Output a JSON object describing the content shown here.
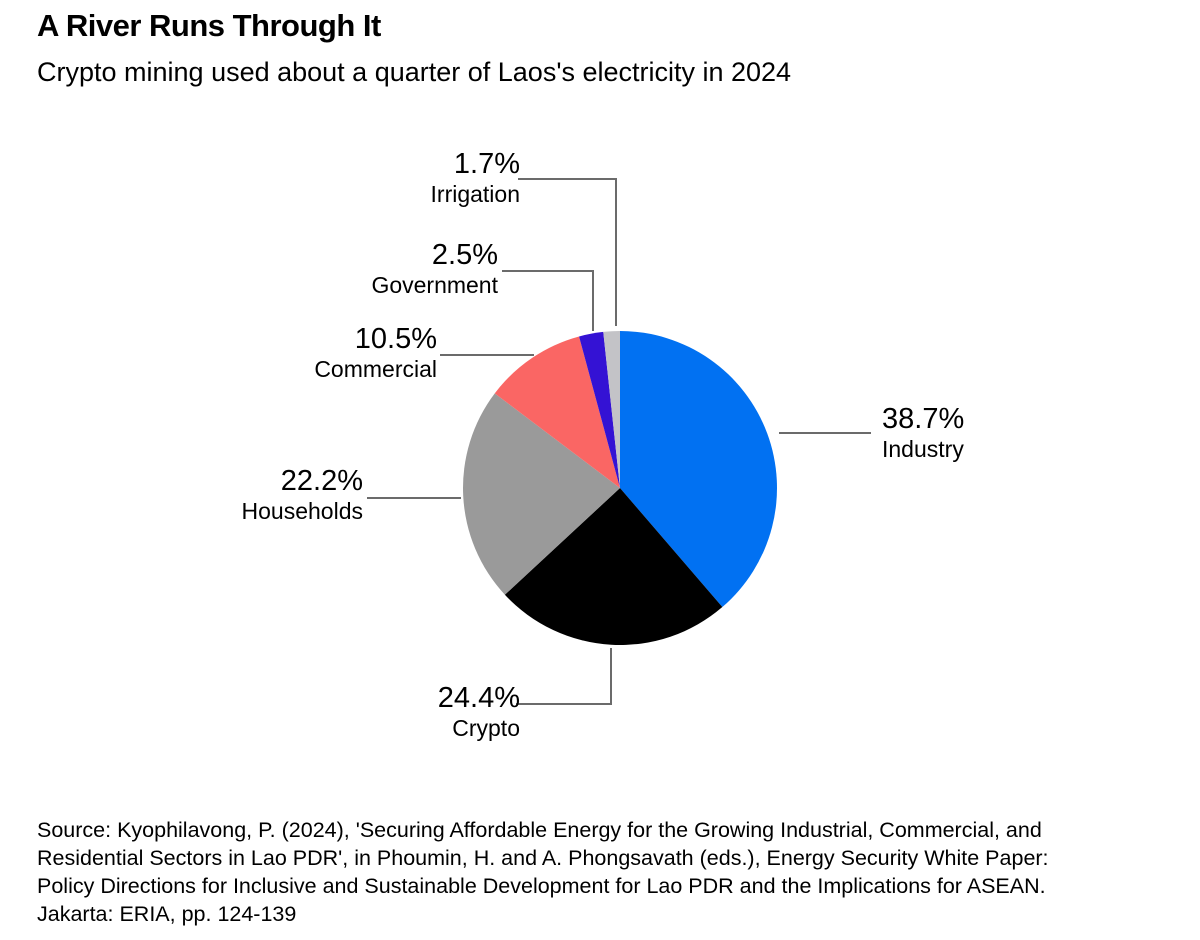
{
  "header": {
    "title": "A River Runs Through It",
    "subtitle": "Crypto mining used about a quarter of Laos's electricity in 2024"
  },
  "chart_data": {
    "type": "pie",
    "title": "A River Runs Through It",
    "subtitle": "Crypto mining used about a quarter of Laos's electricity in 2024",
    "unit": "%",
    "start_angle_deg": 0,
    "direction": "clockwise",
    "legend_position": "none",
    "slices": [
      {
        "label": "Industry",
        "value": 38.7,
        "color": "#0171F2"
      },
      {
        "label": "Crypto",
        "value": 24.4,
        "color": "#000000"
      },
      {
        "label": "Households",
        "value": 22.2,
        "color": "#9A9A9A"
      },
      {
        "label": "Commercial",
        "value": 10.5,
        "color": "#FA6664"
      },
      {
        "label": "Government",
        "value": 2.5,
        "color": "#3412D4"
      },
      {
        "label": "Irrigation",
        "value": 1.7,
        "color": "#C3C3C7"
      }
    ]
  },
  "callouts": {
    "irrigation": {
      "value": "1.7%",
      "name": "Irrigation"
    },
    "government": {
      "value": "2.5%",
      "name": "Government"
    },
    "commercial": {
      "value": "10.5%",
      "name": "Commercial"
    },
    "households": {
      "value": "22.2%",
      "name": "Households"
    },
    "industry": {
      "value": "38.7%",
      "name": "Industry"
    },
    "crypto": {
      "value": "24.4%",
      "name": "Crypto"
    }
  },
  "footer": {
    "source_lines": [
      "Source: Kyophilavong, P. (2024), 'Securing Affordable Energy for the Growing Industrial, Commercial, and",
      "Residential Sectors in Lao PDR', in Phoumin, H. and A. Phongsavath (eds.), Energy Security White Paper:",
      "Policy Directions for Inclusive and Sustainable Development for Lao PDR and the Implications for ASEAN.",
      "Jakarta: ERIA, pp. 124-139"
    ]
  },
  "style": {
    "background": "#FFFFFF",
    "text_color": "#000000",
    "leader_line_color": "#6B6B6B"
  }
}
